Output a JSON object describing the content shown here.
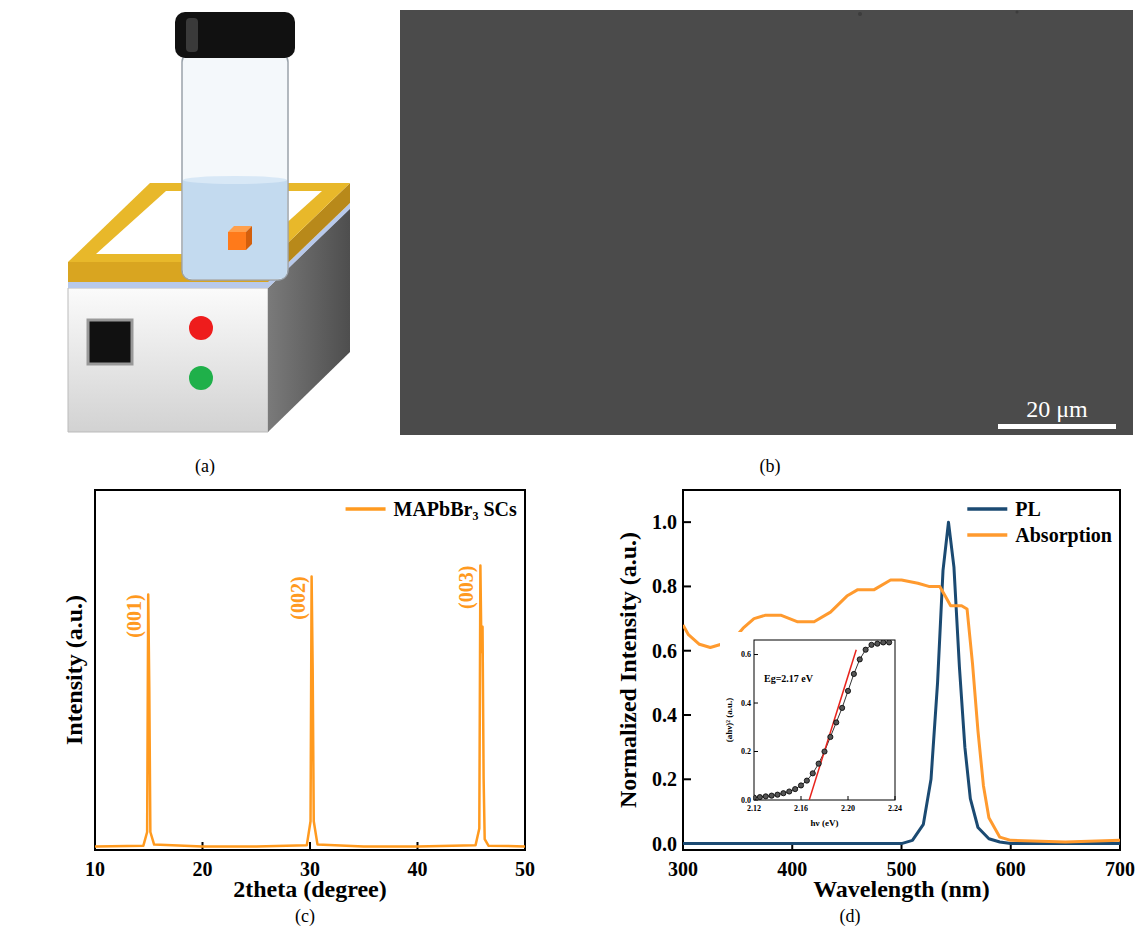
{
  "figure": {
    "panel_labels": [
      "(a)",
      "(b)",
      "(c)",
      "(d)"
    ],
    "scale_bar": "20 μm"
  },
  "chart_data": [
    {
      "type": "line",
      "x_label": "2theta (degree)",
      "y_label": "Intensity (a.u.)",
      "x": [
        10,
        14.5,
        14.85,
        14.95,
        15.05,
        15.15,
        15.5,
        20,
        25,
        29.7,
        30.05,
        30.15,
        30.25,
        30.35,
        30.7,
        35,
        40,
        45.4,
        45.75,
        45.85,
        45.95,
        46.05,
        46.15,
        46.25,
        46.6,
        50
      ],
      "series": [
        {
          "name": "MAPbBr₃ SCs",
          "color": "#ff9a1f",
          "values": [
            0.01,
            0.012,
            0.05,
            0.71,
            0.45,
            0.05,
            0.015,
            0.01,
            0.01,
            0.013,
            0.08,
            0.76,
            0.5,
            0.08,
            0.015,
            0.01,
            0.01,
            0.013,
            0.06,
            0.79,
            0.55,
            0.62,
            0.2,
            0.03,
            0.012,
            0.01
          ]
        }
      ],
      "xlim": [
        10,
        50
      ],
      "xticks": [
        10,
        20,
        30,
        40,
        50
      ],
      "ylim": [
        0,
        1
      ],
      "tick_labels": "x",
      "legend": "upper right",
      "annotations": [
        {
          "text": "(001)",
          "x": 14.95
        },
        {
          "text": "(002)",
          "x": 30.15
        },
        {
          "text": "(003)",
          "x": 45.85
        }
      ]
    },
    {
      "type": "line",
      "x_label": "Wavelength (nm)",
      "y_label": "Normalized Intensity (a.u.)",
      "series": [
        {
          "name": "PL",
          "color": "#1b4a72",
          "x": [
            300,
            400,
            500,
            510,
            520,
            527,
            533,
            538,
            543,
            548,
            553,
            558,
            563,
            570,
            580,
            590,
            600,
            700
          ],
          "values": [
            0,
            0,
            0,
            0.01,
            0.06,
            0.2,
            0.5,
            0.85,
            1.0,
            0.86,
            0.55,
            0.3,
            0.14,
            0.05,
            0.015,
            0.005,
            0,
            0
          ]
        },
        {
          "name": "Absorption",
          "color": "#ff9a2e",
          "x": [
            300,
            305,
            315,
            325,
            335,
            340,
            345,
            355,
            365,
            375,
            390,
            405,
            420,
            435,
            450,
            460,
            475,
            490,
            500,
            515,
            525,
            535,
            540,
            545,
            555,
            560,
            565,
            570,
            575,
            580,
            590,
            600,
            650,
            700
          ],
          "values": [
            0.68,
            0.65,
            0.62,
            0.61,
            0.62,
            0.63,
            0.63,
            0.67,
            0.7,
            0.71,
            0.71,
            0.69,
            0.69,
            0.72,
            0.77,
            0.79,
            0.79,
            0.82,
            0.82,
            0.81,
            0.8,
            0.8,
            0.77,
            0.74,
            0.74,
            0.73,
            0.56,
            0.35,
            0.18,
            0.08,
            0.02,
            0.01,
            0.005,
            0.01
          ]
        }
      ],
      "xlim": [
        300,
        700
      ],
      "xticks": [
        300,
        400,
        500,
        600,
        700
      ],
      "ylim": [
        -0.02,
        1.1
      ],
      "yticks": [
        {
          "value": 0,
          "label": "0.0"
        },
        0.2,
        0.4,
        0.6,
        0.8,
        {
          "value": 1,
          "label": "1.0"
        }
      ],
      "legend": "upper right"
    },
    {
      "type": "scatter",
      "x_label": "hν (eV)",
      "y_label": "(ahν)² (a.u.)",
      "x": [
        2.12,
        2.125,
        2.13,
        2.135,
        2.14,
        2.145,
        2.15,
        2.155,
        2.16,
        2.165,
        2.17,
        2.175,
        2.18,
        2.185,
        2.19,
        2.195,
        2.2,
        2.205,
        2.21,
        2.215,
        2.22,
        2.225,
        2.23,
        2.235
      ],
      "values": [
        0.01,
        0.012,
        0.015,
        0.018,
        0.022,
        0.028,
        0.035,
        0.045,
        0.06,
        0.08,
        0.11,
        0.15,
        0.2,
        0.26,
        0.32,
        0.38,
        0.45,
        0.52,
        0.58,
        0.62,
        0.64,
        0.645,
        0.65,
        0.65
      ],
      "marker": "circle",
      "line_style": "solid",
      "color": "#555555",
      "fit": {
        "x": [
          2.167,
          2.207
        ],
        "y": [
          0,
          0.62
        ],
        "color": "#e8231c"
      },
      "xlim": [
        2.12,
        2.24
      ],
      "xticks": [
        2.12,
        2.16,
        {
          "value": 2.2,
          "label": "2.20"
        },
        2.24
      ],
      "ylim": [
        0,
        0.66
      ],
      "yticks": [
        {
          "value": 0,
          "label": "0.0"
        },
        0.2,
        0.4,
        0.6
      ],
      "annotations": [
        {
          "text": "Eg=2.17 eV"
        }
      ]
    }
  ]
}
